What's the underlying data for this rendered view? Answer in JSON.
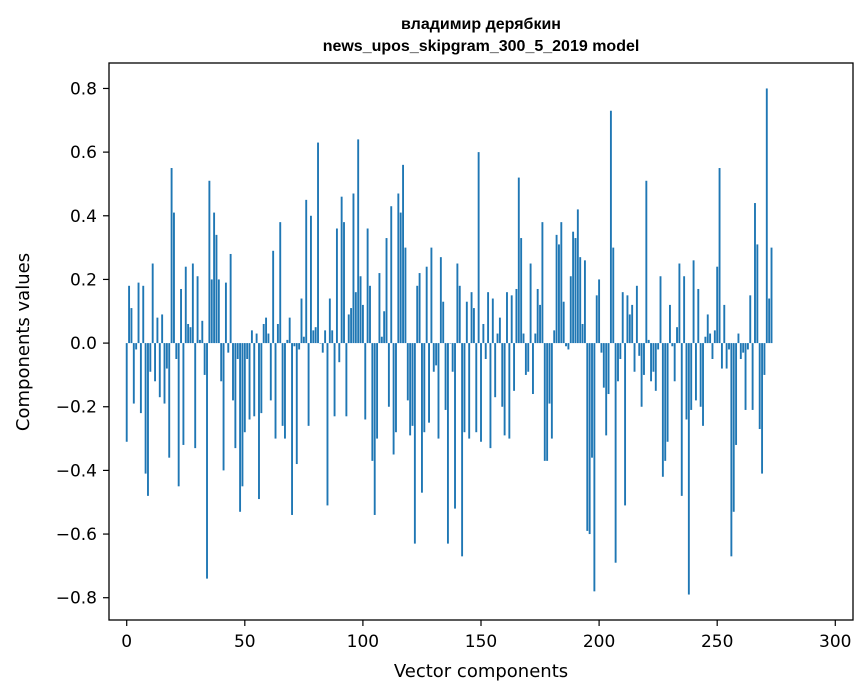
{
  "chart_data": {
    "type": "bar",
    "title": "владимир дерябкин",
    "subtitle": "news_upos_skipgram_300_5_2019 model",
    "xlabel": "Vector components",
    "ylabel": "Components values",
    "xlim": [
      -7.5,
      307.5
    ],
    "ylim": [
      -0.87,
      0.88
    ],
    "x_ticks": [
      0,
      50,
      100,
      150,
      200,
      250,
      300
    ],
    "x_tick_labels": [
      "0",
      "50",
      "100",
      "150",
      "200",
      "250",
      "300"
    ],
    "y_ticks": [
      -0.8,
      -0.6,
      -0.4,
      -0.2,
      0.0,
      0.2,
      0.4,
      0.6,
      0.8
    ],
    "y_tick_labels": [
      "−0.8",
      "−0.6",
      "−0.4",
      "−0.2",
      "0.0",
      "0.2",
      "0.4",
      "0.6",
      "0.8"
    ],
    "bar_color": "#1f77b4",
    "values": [
      -0.31,
      0.18,
      0.11,
      -0.19,
      -0.02,
      0.19,
      -0.22,
      0.18,
      -0.41,
      -0.48,
      -0.09,
      0.25,
      -0.12,
      0.08,
      -0.17,
      0.09,
      -0.19,
      -0.08,
      -0.36,
      0.55,
      0.41,
      -0.05,
      -0.45,
      0.17,
      -0.32,
      0.24,
      0.06,
      0.05,
      0.25,
      -0.33,
      0.21,
      0.01,
      0.07,
      -0.1,
      -0.74,
      0.51,
      0.2,
      0.41,
      0.34,
      0.2,
      -0.12,
      -0.4,
      0.19,
      -0.03,
      0.28,
      -0.18,
      -0.33,
      -0.05,
      -0.53,
      -0.45,
      -0.28,
      -0.05,
      -0.24,
      0.04,
      -0.23,
      0.03,
      -0.49,
      -0.22,
      0.06,
      0.08,
      0.03,
      -0.18,
      0.29,
      -0.3,
      0.06,
      0.38,
      -0.26,
      -0.3,
      0.01,
      0.08,
      -0.54,
      -0.01,
      -0.38,
      -0.02,
      0.14,
      0.02,
      0.45,
      -0.26,
      0.4,
      0.04,
      0.05,
      0.63,
      0.0,
      -0.03,
      0.04,
      -0.51,
      0.14,
      0.04,
      -0.23,
      0.36,
      -0.06,
      0.46,
      0.38,
      -0.23,
      0.09,
      0.11,
      0.47,
      0.16,
      0.64,
      0.21,
      0.12,
      -0.24,
      0.36,
      0.18,
      -0.37,
      -0.54,
      -0.3,
      0.22,
      0.02,
      0.1,
      0.33,
      -0.2,
      0.43,
      -0.35,
      -0.28,
      0.47,
      0.41,
      0.56,
      0.3,
      -0.18,
      -0.29,
      -0.26,
      -0.63,
      0.18,
      0.22,
      -0.47,
      -0.28,
      0.24,
      -0.25,
      0.3,
      -0.09,
      -0.07,
      -0.3,
      0.27,
      0.13,
      -0.21,
      -0.63,
      0.0,
      -0.09,
      -0.52,
      0.25,
      0.18,
      -0.67,
      -0.28,
      0.13,
      -0.3,
      0.16,
      0.11,
      -0.28,
      0.6,
      -0.31,
      0.06,
      -0.05,
      0.16,
      -0.33,
      0.14,
      -0.17,
      0.03,
      0.08,
      -0.2,
      -0.29,
      0.16,
      -0.3,
      0.15,
      -0.15,
      0.17,
      0.52,
      0.33,
      0.03,
      -0.1,
      -0.09,
      0.25,
      -0.16,
      0.03,
      0.17,
      0.12,
      0.38,
      -0.37,
      -0.37,
      -0.19,
      -0.3,
      0.04,
      0.34,
      0.31,
      0.38,
      0.13,
      -0.01,
      -0.02,
      0.21,
      0.35,
      0.33,
      0.42,
      0.27,
      0.06,
      0.26,
      -0.59,
      -0.6,
      -0.36,
      -0.78,
      0.15,
      0.2,
      -0.03,
      -0.14,
      -0.29,
      -0.16,
      0.73,
      0.3,
      -0.69,
      -0.12,
      -0.05,
      0.16,
      -0.51,
      0.15,
      0.09,
      0.12,
      -0.09,
      0.18,
      -0.04,
      -0.2,
      -0.1,
      0.51,
      0.01,
      -0.12,
      -0.09,
      -0.15,
      -0.02,
      0.21,
      -0.42,
      -0.37,
      -0.31,
      0.12,
      -0.01,
      -0.12,
      0.05,
      0.25,
      -0.48,
      0.21,
      -0.24,
      -0.79,
      -0.21,
      0.26,
      -0.18,
      0.17,
      -0.2,
      -0.26,
      0.02,
      0.09,
      0.03,
      -0.05,
      0.04,
      0.24,
      0.55,
      -0.08,
      0.12,
      -0.08,
      -0.02,
      -0.67,
      -0.53,
      -0.32,
      0.03,
      -0.05,
      -0.03,
      -0.21,
      -0.02,
      0.15,
      -0.21,
      0.44,
      0.31,
      -0.27,
      -0.41,
      -0.1,
      0.8,
      0.14,
      0.3
    ]
  }
}
